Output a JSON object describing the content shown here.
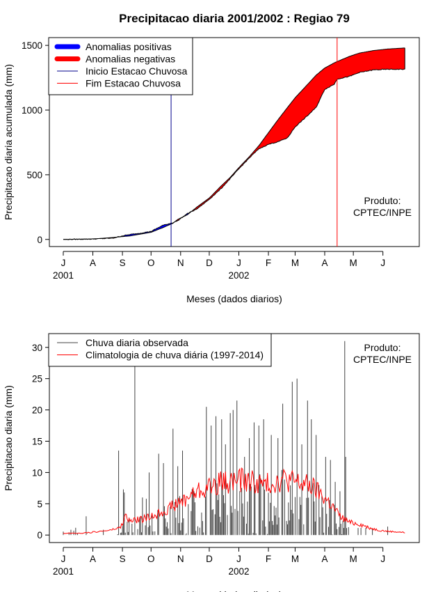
{
  "page_title": "Precipitacao diaria 2001/2002 : Regiao 79",
  "chart_data": [
    {
      "type": "area",
      "title": "Precipitacao diaria 2001/2002 : Regiao 79",
      "xlabel": "Meses (dados diarios)",
      "ylabel": "Precipitacao diaria acumulada (mm)",
      "ylim": [
        0,
        1500
      ],
      "yticks": [
        0,
        500,
        1000,
        1500
      ],
      "months": [
        "J",
        "A",
        "S",
        "O",
        "N",
        "D",
        "J",
        "F",
        "M",
        "A",
        "M",
        "J"
      ],
      "month_day": [
        0,
        31,
        62,
        92,
        123,
        153,
        184,
        215,
        243,
        274,
        304,
        335
      ],
      "years": [
        {
          "label": "2001",
          "day": 0
        },
        {
          "label": "2002",
          "day": 184
        }
      ],
      "xlim_days": [
        -5,
        370
      ],
      "legend": [
        {
          "label": "Anomalias positivas",
          "color": "#0000ff",
          "style": "thick"
        },
        {
          "label": "Anomalias negativas",
          "color": "#ff0000",
          "style": "thick"
        },
        {
          "label": "Inicio Estacao Chuvosa",
          "color": "#00008b",
          "style": "thin"
        },
        {
          "label": "Fim Estacao Chuvosa",
          "color": "#ff0000",
          "style": "thin"
        }
      ],
      "onset_day": 113,
      "end_day": 287,
      "observed_cumulative": {
        "days": [
          0,
          31,
          52,
          62,
          70,
          80,
          92,
          104,
          115,
          120,
          130,
          140,
          153,
          165,
          175,
          184,
          195,
          205,
          215,
          225,
          235,
          243,
          255,
          265,
          274,
          284,
          287,
          300,
          310,
          325,
          340,
          358
        ],
        "values": [
          0,
          3,
          10,
          28,
          38,
          48,
          62,
          108,
          130,
          145,
          200,
          235,
          310,
          390,
          470,
          545,
          630,
          700,
          735,
          755,
          785,
          870,
          950,
          1020,
          1160,
          1200,
          1240,
          1260,
          1290,
          1310,
          1315,
          1315
        ]
      },
      "climatology_cumulative": {
        "days": [
          0,
          31,
          52,
          62,
          70,
          80,
          92,
          104,
          115,
          120,
          130,
          140,
          153,
          165,
          175,
          184,
          195,
          205,
          215,
          225,
          235,
          243,
          255,
          265,
          274,
          284,
          287,
          300,
          310,
          325,
          340,
          358
        ],
        "values": [
          0,
          4,
          15,
          22,
          27,
          40,
          55,
          90,
          125,
          155,
          190,
          250,
          320,
          410,
          480,
          555,
          640,
          725,
          825,
          925,
          1020,
          1095,
          1190,
          1270,
          1325,
          1365,
          1375,
          1415,
          1440,
          1460,
          1472,
          1480
        ]
      },
      "annotation": "Produto:\nCPTEC/INPE"
    },
    {
      "type": "bar",
      "xlabel": "Meses (dados diarios)",
      "ylabel": "Precipitacao diaria (mm)",
      "ylim": [
        0,
        31
      ],
      "yticks": [
        0,
        5,
        10,
        15,
        20,
        25,
        30
      ],
      "months": [
        "J",
        "A",
        "S",
        "O",
        "N",
        "D",
        "J",
        "F",
        "M",
        "A",
        "M",
        "J"
      ],
      "month_day": [
        0,
        31,
        62,
        92,
        123,
        153,
        184,
        215,
        243,
        274,
        304,
        335
      ],
      "years": [
        {
          "label": "2001",
          "day": 0
        },
        {
          "label": "2002",
          "day": 184
        }
      ],
      "xlim_days": [
        -5,
        370
      ],
      "legend": [
        {
          "label": "Chuva diaria observada",
          "color": "#404040",
          "style": "thin"
        },
        {
          "label": "Climatologia de chuva diária (1997-2014)",
          "color": "#ff0000",
          "style": "thin"
        }
      ],
      "observed_daily_peaks": {
        "days": [
          24,
          58,
          63,
          64,
          75,
          83,
          87,
          90,
          100,
          105,
          115,
          120,
          125,
          150,
          155,
          160,
          166,
          170,
          175,
          178,
          182,
          190,
          195,
          200,
          205,
          210,
          218,
          225,
          230,
          240,
          245,
          250,
          256,
          260,
          265,
          268,
          275,
          280,
          285,
          290,
          295,
          296
        ],
        "values": [
          3.0,
          13.5,
          7.3,
          6.8,
          30,
          6.0,
          5.8,
          10.0,
          13.0,
          11.5,
          17.0,
          11.0,
          13.5,
          20.5,
          17.5,
          19.0,
          18.5,
          14.5,
          19.5,
          20.0,
          21.5,
          12.5,
          15.5,
          18.0,
          17.5,
          18.5,
          16.0,
          15.5,
          21.0,
          24.5,
          25.0,
          14.5,
          21.5,
          18.5,
          16.0,
          8.0,
          12.5,
          12.0,
          8.5,
          7.0,
          31.0,
          12.5
        ]
      },
      "climatology_daily": {
        "days": [
          0,
          20,
          40,
          50,
          60,
          65,
          70,
          80,
          90,
          100,
          110,
          120,
          130,
          140,
          150,
          160,
          170,
          180,
          190,
          200,
          210,
          220,
          230,
          240,
          250,
          260,
          270,
          280,
          290,
          300,
          310,
          320,
          330,
          340,
          350,
          358
        ],
        "values": [
          0.3,
          0.3,
          0.6,
          0.8,
          1.2,
          3.0,
          2.2,
          2.5,
          2.8,
          3.5,
          4.2,
          5.0,
          6.0,
          7.0,
          7.5,
          8.2,
          8.5,
          8.7,
          8.8,
          8.5,
          8.0,
          8.4,
          9.0,
          8.6,
          8.2,
          7.8,
          6.5,
          5.0,
          3.0,
          2.0,
          1.8,
          1.2,
          0.8,
          0.6,
          0.5,
          0.4
        ]
      },
      "annotation": "Produto:\nCPTEC/INPE"
    }
  ]
}
